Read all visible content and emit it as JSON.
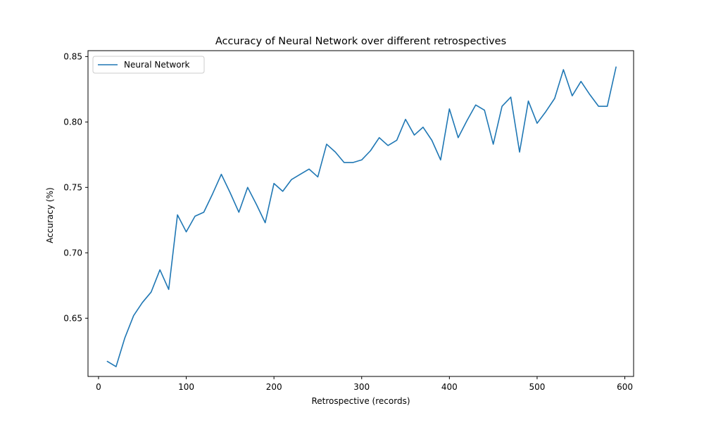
{
  "chart_data": {
    "type": "line",
    "title": "Accuracy of Neural Network over different retrospectives",
    "xlabel": "Retrospective (records)",
    "ylabel": "Accuracy (%)",
    "xlim": [
      -12,
      610
    ],
    "ylim": [
      0.6055,
      0.8545
    ],
    "x_ticks": [
      0,
      100,
      200,
      300,
      400,
      500,
      600
    ],
    "y_ticks": [
      0.65,
      0.7,
      0.75,
      0.8,
      0.85
    ],
    "y_tick_labels": [
      "0.65",
      "0.70",
      "0.75",
      "0.80",
      "0.85"
    ],
    "grid": false,
    "legend_position": "upper-left",
    "series": [
      {
        "name": "Neural Network",
        "color": "#1f77b4",
        "x": [
          10,
          20,
          30,
          40,
          50,
          60,
          70,
          80,
          90,
          100,
          110,
          120,
          130,
          140,
          150,
          160,
          170,
          180,
          190,
          200,
          210,
          220,
          230,
          240,
          250,
          260,
          270,
          280,
          290,
          300,
          310,
          320,
          330,
          340,
          350,
          360,
          370,
          380,
          390,
          400,
          410,
          420,
          430,
          440,
          450,
          460,
          470,
          480,
          490,
          500,
          510,
          520,
          530,
          540,
          550,
          560,
          570,
          580,
          590
        ],
        "values": [
          0.617,
          0.613,
          0.635,
          0.652,
          0.662,
          0.67,
          0.687,
          0.672,
          0.729,
          0.716,
          0.728,
          0.731,
          0.745,
          0.76,
          0.746,
          0.731,
          0.75,
          0.737,
          0.723,
          0.753,
          0.747,
          0.756,
          0.76,
          0.764,
          0.758,
          0.783,
          0.777,
          0.769,
          0.769,
          0.771,
          0.778,
          0.788,
          0.782,
          0.786,
          0.802,
          0.79,
          0.796,
          0.786,
          0.771,
          0.81,
          0.788,
          0.801,
          0.813,
          0.809,
          0.783,
          0.812,
          0.819,
          0.777,
          0.816,
          0.799,
          0.808,
          0.818,
          0.84,
          0.82,
          0.831,
          0.821,
          0.812,
          0.812,
          0.842
        ]
      }
    ]
  }
}
